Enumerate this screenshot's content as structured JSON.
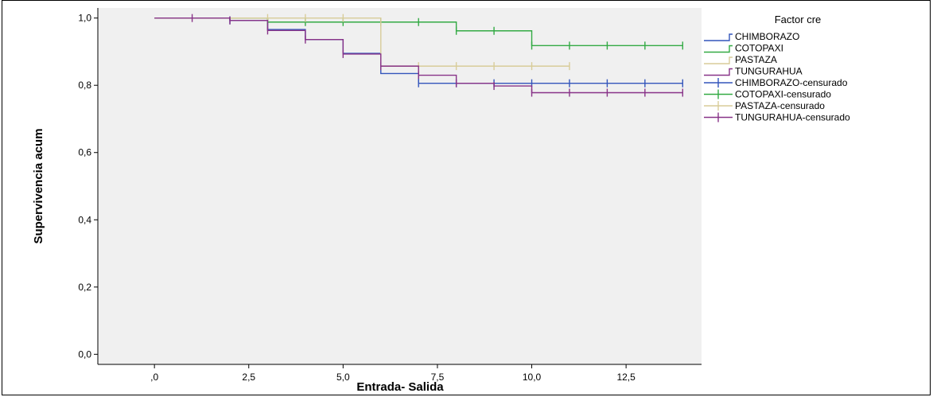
{
  "chart_data": {
    "type": "line",
    "title": "",
    "xlabel": "Entrada- Salida",
    "ylabel": "Supervivencia acum",
    "xlim": [
      -1.5,
      14.5
    ],
    "ylim": [
      -0.03,
      1.03
    ],
    "x_ticks": [
      0,
      2.5,
      5,
      7.5,
      10,
      12.5
    ],
    "x_tick_labels": [
      ",0",
      "2,5",
      "5,0",
      "7,5",
      "10,0",
      "12,5"
    ],
    "y_ticks": [
      0,
      0.2,
      0.4,
      0.6,
      0.8,
      1.0
    ],
    "y_tick_labels": [
      "0,0",
      "0,2",
      "0,4",
      "0,6",
      "0,8",
      "1,0"
    ],
    "plot_background": "#f0f0f0",
    "grid": false,
    "legend": {
      "title": "Factor cre",
      "placement": "right",
      "entries": [
        "CHIMBORAZO",
        "COTOPAXI",
        "PASTAZA",
        "TUNGURAHUA",
        "CHIMBORAZO-censurado",
        "COTOPAXI-censurado",
        "PASTAZA-censurado",
        "TUNGURAHUA-censurado"
      ]
    },
    "series": [
      {
        "name": "CHIMBORAZO",
        "color": "#3355bb",
        "steps": [
          [
            0,
            1.0
          ],
          [
            2,
            0.993
          ],
          [
            3,
            0.966
          ],
          [
            4,
            0.936
          ],
          [
            5,
            0.895
          ],
          [
            6,
            0.835
          ],
          [
            7,
            0.806
          ],
          [
            14,
            0.806
          ]
        ],
        "censored": [
          [
            2,
            0.993
          ],
          [
            7,
            0.806
          ],
          [
            8,
            0.806
          ],
          [
            9,
            0.806
          ],
          [
            10,
            0.806
          ],
          [
            11,
            0.806
          ],
          [
            12,
            0.806
          ],
          [
            13,
            0.806
          ],
          [
            14,
            0.806
          ]
        ]
      },
      {
        "name": "COTOPAXI",
        "color": "#33aa44",
        "steps": [
          [
            0,
            1.0
          ],
          [
            3,
            0.988
          ],
          [
            8,
            0.962
          ],
          [
            10,
            0.918
          ],
          [
            14,
            0.918
          ]
        ],
        "censored": [
          [
            3,
            0.988
          ],
          [
            4,
            0.988
          ],
          [
            5,
            0.988
          ],
          [
            6,
            0.988
          ],
          [
            7,
            0.988
          ],
          [
            8,
            0.962
          ],
          [
            9,
            0.962
          ],
          [
            10,
            0.918
          ],
          [
            11,
            0.918
          ],
          [
            12,
            0.918
          ],
          [
            13,
            0.918
          ],
          [
            14,
            0.918
          ]
        ]
      },
      {
        "name": "PASTAZA",
        "color": "#d8cc99",
        "steps": [
          [
            0,
            1.0
          ],
          [
            6,
            0.857
          ],
          [
            11,
            0.857
          ]
        ],
        "censored": [
          [
            3,
            1.0
          ],
          [
            4,
            1.0
          ],
          [
            5,
            1.0
          ],
          [
            7,
            0.857
          ],
          [
            8,
            0.857
          ],
          [
            9,
            0.857
          ],
          [
            10,
            0.857
          ],
          [
            11,
            0.857
          ]
        ]
      },
      {
        "name": "TUNGURAHUA",
        "color": "#883388",
        "steps": [
          [
            0,
            1.0
          ],
          [
            2,
            0.993
          ],
          [
            3,
            0.963
          ],
          [
            4,
            0.936
          ],
          [
            5,
            0.893
          ],
          [
            6,
            0.857
          ],
          [
            7,
            0.83
          ],
          [
            8,
            0.806
          ],
          [
            9,
            0.798
          ],
          [
            10,
            0.778
          ],
          [
            14,
            0.778
          ]
        ],
        "censored": [
          [
            1,
            1.0
          ],
          [
            2,
            0.993
          ],
          [
            3,
            0.963
          ],
          [
            4,
            0.936
          ],
          [
            5,
            0.893
          ],
          [
            6,
            0.857
          ],
          [
            7,
            0.83
          ],
          [
            8,
            0.806
          ],
          [
            9,
            0.798
          ],
          [
            10,
            0.778
          ],
          [
            11,
            0.778
          ],
          [
            12,
            0.778
          ],
          [
            13,
            0.778
          ],
          [
            14,
            0.778
          ]
        ]
      }
    ]
  }
}
